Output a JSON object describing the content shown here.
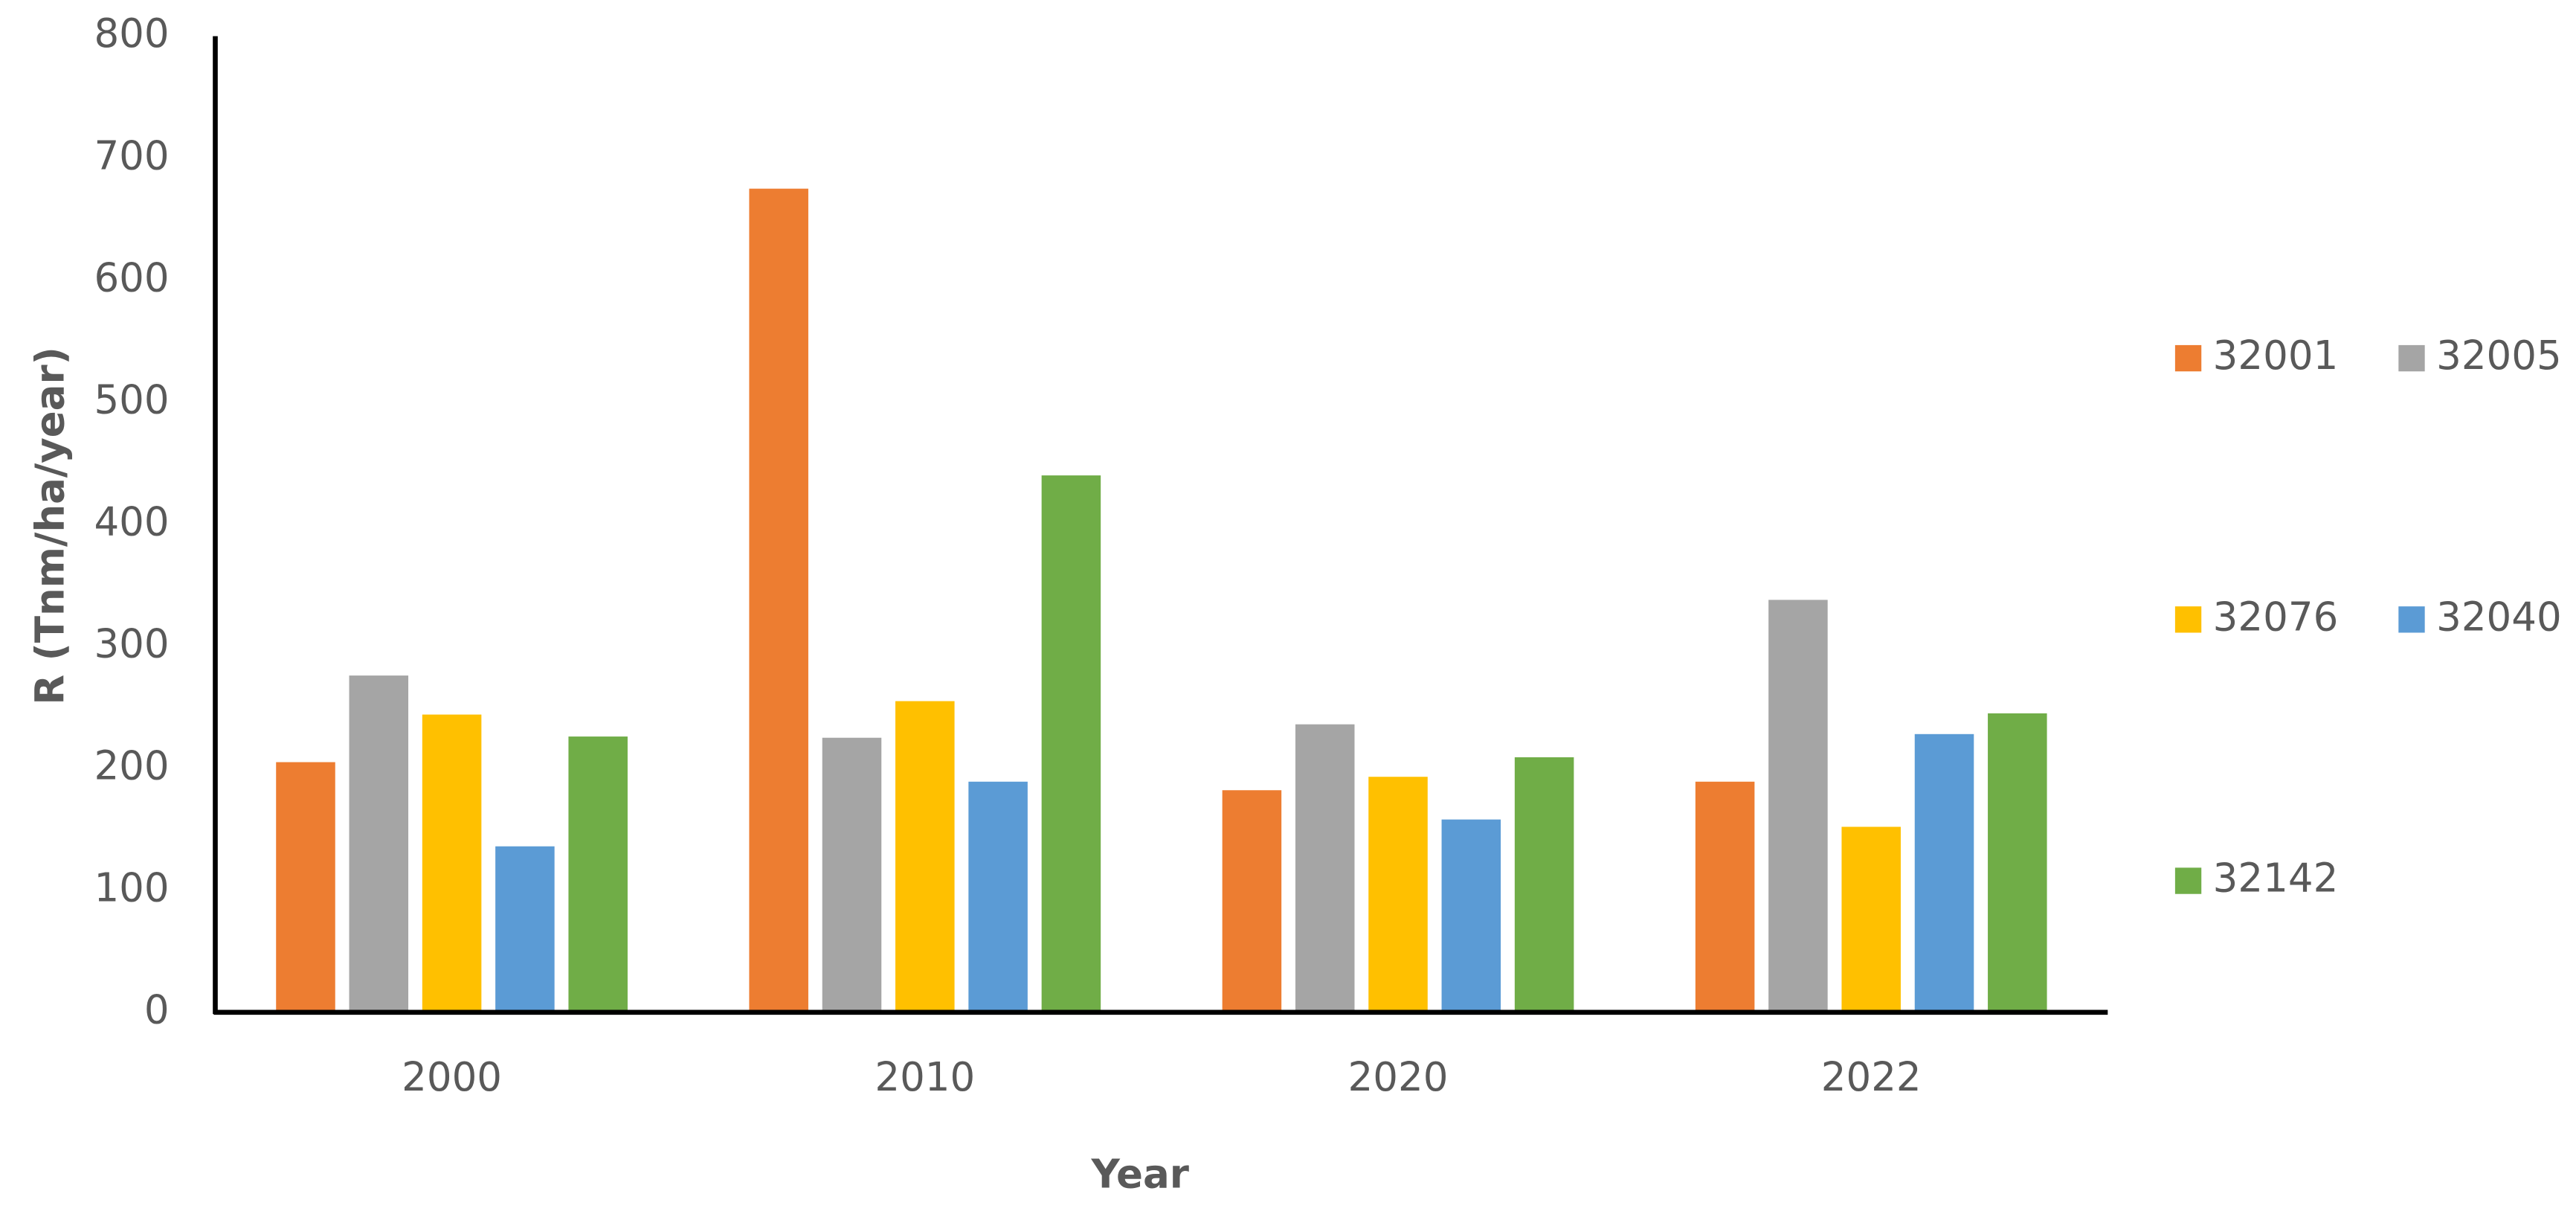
{
  "chart_data": {
    "type": "bar",
    "x_label": "Year",
    "y_label": "R (Tnm/ha/year)",
    "categories": [
      "2000",
      "2010",
      "2020",
      "2022"
    ],
    "series": [
      {
        "name": "32001",
        "color": "#ed7d31",
        "values": [
          205,
          675,
          182,
          189
        ]
      },
      {
        "name": "32005",
        "color": "#a5a5a5",
        "values": [
          276,
          225,
          236,
          338
        ]
      },
      {
        "name": "32076",
        "color": "#ffc000",
        "values": [
          244,
          255,
          193,
          152
        ]
      },
      {
        "name": "32040",
        "color": "#5b9bd5",
        "values": [
          136,
          189,
          158,
          228
        ]
      },
      {
        "name": "32142",
        "color": "#70ad47",
        "values": [
          226,
          440,
          209,
          245
        ]
      }
    ],
    "ylim": [
      0,
      800
    ],
    "yticks": [
      0,
      100,
      200,
      300,
      400,
      500,
      600,
      700,
      800
    ],
    "grid": false,
    "legend": "right"
  }
}
